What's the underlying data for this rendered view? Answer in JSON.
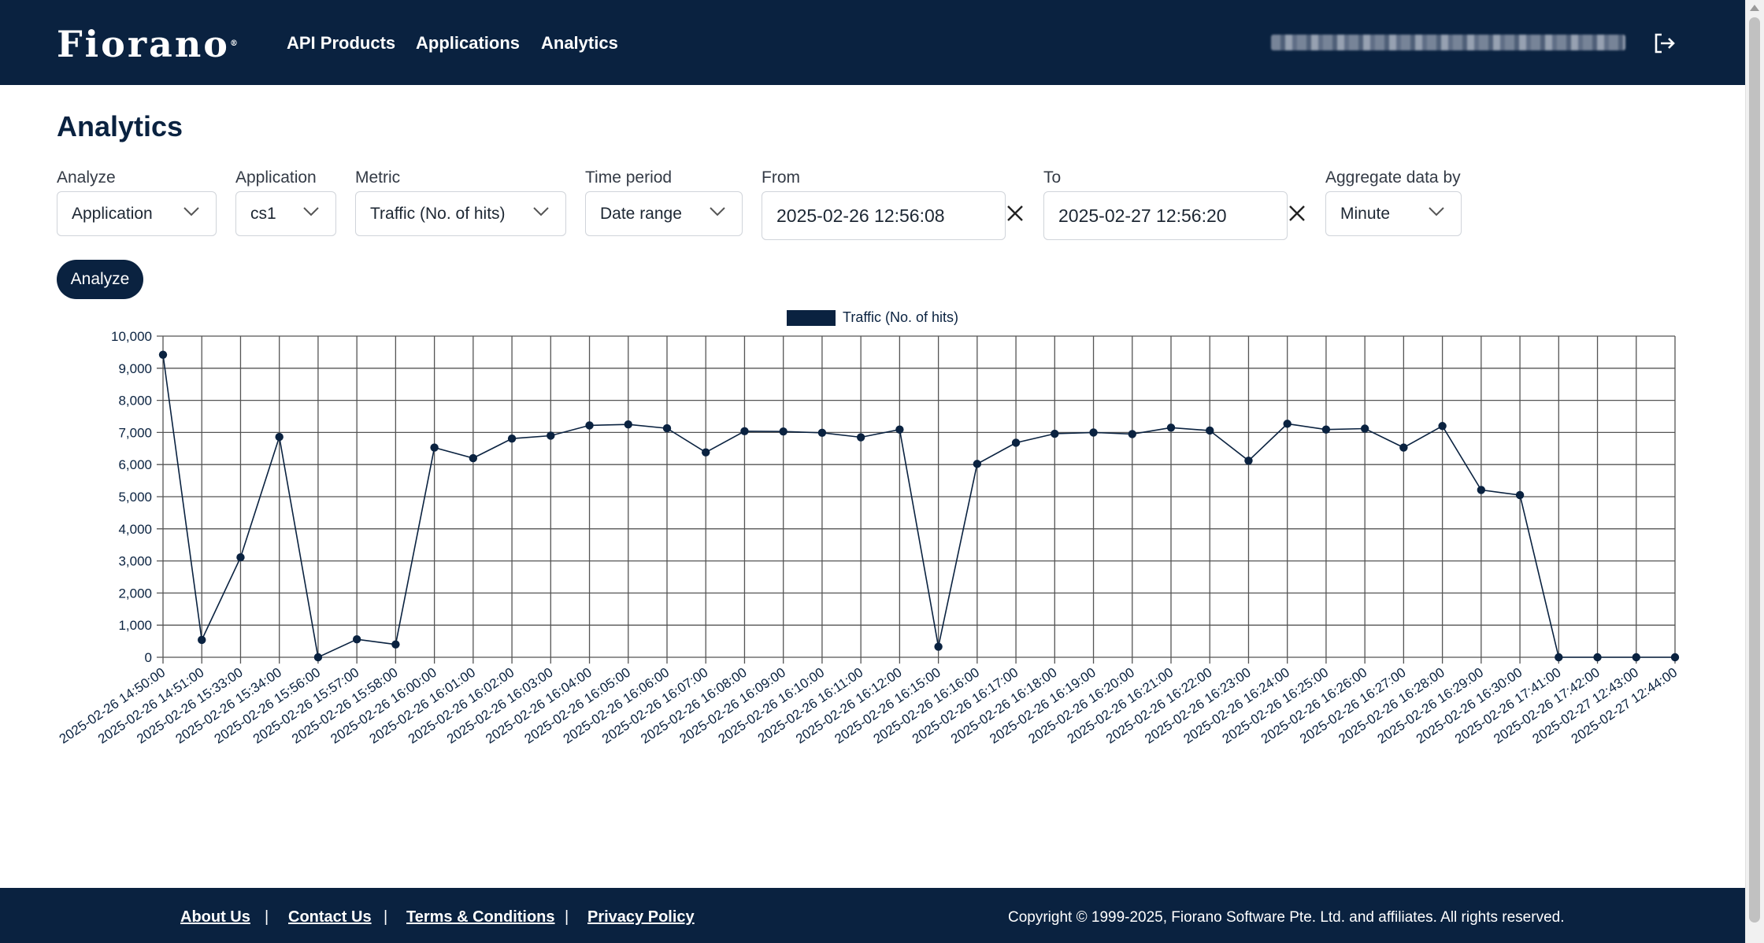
{
  "header": {
    "logo_text": "Fiorano",
    "logo_mark": "®",
    "nav": [
      "API Products",
      "Applications",
      "Analytics"
    ]
  },
  "page": {
    "title": "Analytics"
  },
  "filters": {
    "analyze": {
      "label": "Analyze",
      "value": "Application"
    },
    "application": {
      "label": "Application",
      "value": "cs1"
    },
    "metric": {
      "label": "Metric",
      "value": "Traffic (No. of hits)"
    },
    "time_period": {
      "label": "Time period",
      "value": "Date range"
    },
    "from": {
      "label": "From",
      "value": "2025-02-26 12:56:08"
    },
    "to": {
      "label": "To",
      "value": "2025-02-27 12:56:20"
    },
    "aggregate": {
      "label": "Aggregate data by",
      "value": "Minute"
    }
  },
  "actions": {
    "analyze_label": "Analyze"
  },
  "colors": {
    "brand": "#0a2240",
    "grid": "#555555"
  },
  "icons": {
    "logout": "logout-icon",
    "clear": "close-icon",
    "dropdown": "chevron-down-icon"
  },
  "chart_data": {
    "type": "line",
    "legend": "Traffic (No. of hits)",
    "legend_position": "top-center",
    "grid": true,
    "ylim": [
      0,
      10000
    ],
    "y_ticks": [
      "0",
      "1,000",
      "2,000",
      "3,000",
      "4,000",
      "5,000",
      "6,000",
      "7,000",
      "8,000",
      "9,000",
      "10,000"
    ],
    "categories": [
      "2025-02-26 14:50:00",
      "2025-02-26 14:51:00",
      "2025-02-26 15:33:00",
      "2025-02-26 15:34:00",
      "2025-02-26 15:56:00",
      "2025-02-26 15:57:00",
      "2025-02-26 15:58:00",
      "2025-02-26 16:00:00",
      "2025-02-26 16:01:00",
      "2025-02-26 16:02:00",
      "2025-02-26 16:03:00",
      "2025-02-26 16:04:00",
      "2025-02-26 16:05:00",
      "2025-02-26 16:06:00",
      "2025-02-26 16:07:00",
      "2025-02-26 16:08:00",
      "2025-02-26 16:09:00",
      "2025-02-26 16:10:00",
      "2025-02-26 16:11:00",
      "2025-02-26 16:12:00",
      "2025-02-26 16:15:00",
      "2025-02-26 16:16:00",
      "2025-02-26 16:17:00",
      "2025-02-26 16:18:00",
      "2025-02-26 16:19:00",
      "2025-02-26 16:20:00",
      "2025-02-26 16:21:00",
      "2025-02-26 16:22:00",
      "2025-02-26 16:23:00",
      "2025-02-26 16:24:00",
      "2025-02-26 16:25:00",
      "2025-02-26 16:26:00",
      "2025-02-26 16:27:00",
      "2025-02-26 16:28:00",
      "2025-02-26 16:29:00",
      "2025-02-26 16:30:00",
      "2025-02-26 17:41:00",
      "2025-02-26 17:42:00",
      "2025-02-27 12:43:00",
      "2025-02-27 12:44:00"
    ],
    "series": [
      {
        "name": "Traffic (No. of hits)",
        "values": [
          9420,
          540,
          3110,
          6860,
          0,
          560,
          400,
          6530,
          6200,
          6810,
          6900,
          7220,
          7250,
          7130,
          6380,
          7040,
          7030,
          6990,
          6850,
          7090,
          330,
          6020,
          6680,
          6960,
          7000,
          6950,
          7150,
          7060,
          6120,
          7270,
          7090,
          7120,
          6530,
          7200,
          5210,
          5050,
          0,
          0,
          0,
          0
        ]
      }
    ]
  },
  "footer": {
    "links": [
      "About Us",
      "Contact Us",
      "Terms & Conditions",
      "Privacy Policy"
    ],
    "separator": "|",
    "copyright": "Copyright © 1999-2025, Fiorano Software Pte. Ltd. and affiliates. All rights reserved."
  }
}
